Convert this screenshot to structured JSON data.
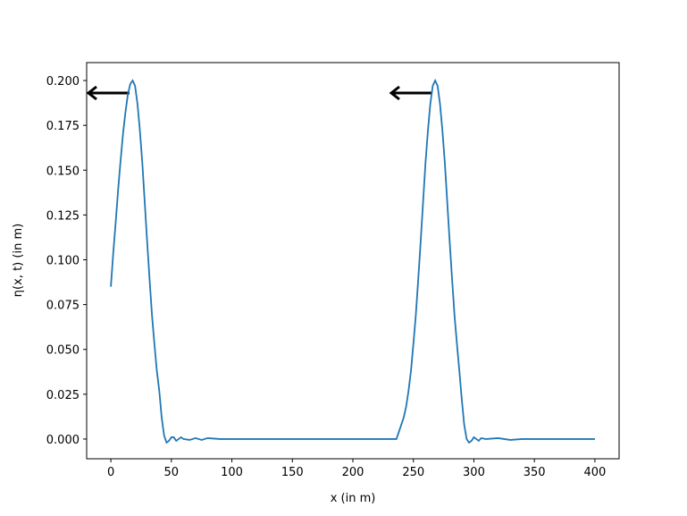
{
  "chart_data": {
    "type": "line",
    "xlabel": "x (in m)",
    "ylabel": "η(x, t) (in m)",
    "x": [
      0,
      2,
      4,
      6,
      8,
      10,
      12,
      14,
      16,
      18,
      20,
      22,
      24,
      26,
      28,
      30,
      32,
      34,
      36,
      38,
      40,
      42,
      44,
      46,
      48,
      50,
      52,
      54,
      56,
      58,
      60,
      65,
      70,
      75,
      80,
      90,
      100,
      120,
      150,
      180,
      210,
      230,
      236,
      240,
      242,
      244,
      246,
      248,
      250,
      252,
      254,
      256,
      258,
      260,
      262,
      264,
      266,
      268,
      270,
      272,
      274,
      276,
      278,
      280,
      282,
      284,
      286,
      288,
      290,
      292,
      294,
      296,
      298,
      300,
      302,
      304,
      306,
      310,
      320,
      330,
      340,
      360,
      380,
      400
    ],
    "series": [
      {
        "name": "eta",
        "color": "#1f77b4",
        "values": [
          0.085,
          0.104,
          0.121,
          0.139,
          0.155,
          0.17,
          0.182,
          0.192,
          0.198,
          0.2,
          0.197,
          0.187,
          0.172,
          0.154,
          0.132,
          0.11,
          0.089,
          0.069,
          0.053,
          0.038,
          0.027,
          0.012,
          0.002,
          -0.002,
          -0.001,
          0.001,
          0.001,
          -0.001,
          0,
          0.001,
          0,
          -0.0005,
          0.0005,
          -0.0005,
          0.0005,
          0,
          0,
          0,
          0,
          0,
          0,
          0,
          0,
          0.008,
          0.012,
          0.018,
          0.027,
          0.038,
          0.053,
          0.069,
          0.089,
          0.11,
          0.132,
          0.154,
          0.172,
          0.187,
          0.197,
          0.2,
          0.197,
          0.187,
          0.172,
          0.154,
          0.132,
          0.11,
          0.089,
          0.069,
          0.053,
          0.038,
          0.022,
          0.008,
          0,
          -0.002,
          -0.001,
          0.001,
          0,
          -0.001,
          0.0005,
          0,
          0.0005,
          -0.0005,
          0,
          0,
          0,
          0
        ]
      }
    ],
    "xlim": [
      -20,
      420
    ],
    "ylim": [
      -0.011,
      0.21
    ],
    "xticks": [
      0,
      50,
      100,
      150,
      200,
      250,
      300,
      350,
      400
    ],
    "yticks": [
      {
        "value": 0,
        "label": "0.000"
      },
      {
        "value": 0.025,
        "label": "0.025"
      },
      {
        "value": 0.05,
        "label": "0.050"
      },
      {
        "value": 0.075,
        "label": "0.075"
      },
      {
        "value": 0.1,
        "label": "0.100"
      },
      {
        "value": 0.125,
        "label": "0.125"
      },
      {
        "value": 0.15,
        "label": "0.150"
      },
      {
        "value": 0.175,
        "label": "0.175"
      },
      {
        "value": 0.2,
        "label": "0.200"
      }
    ]
  }
}
